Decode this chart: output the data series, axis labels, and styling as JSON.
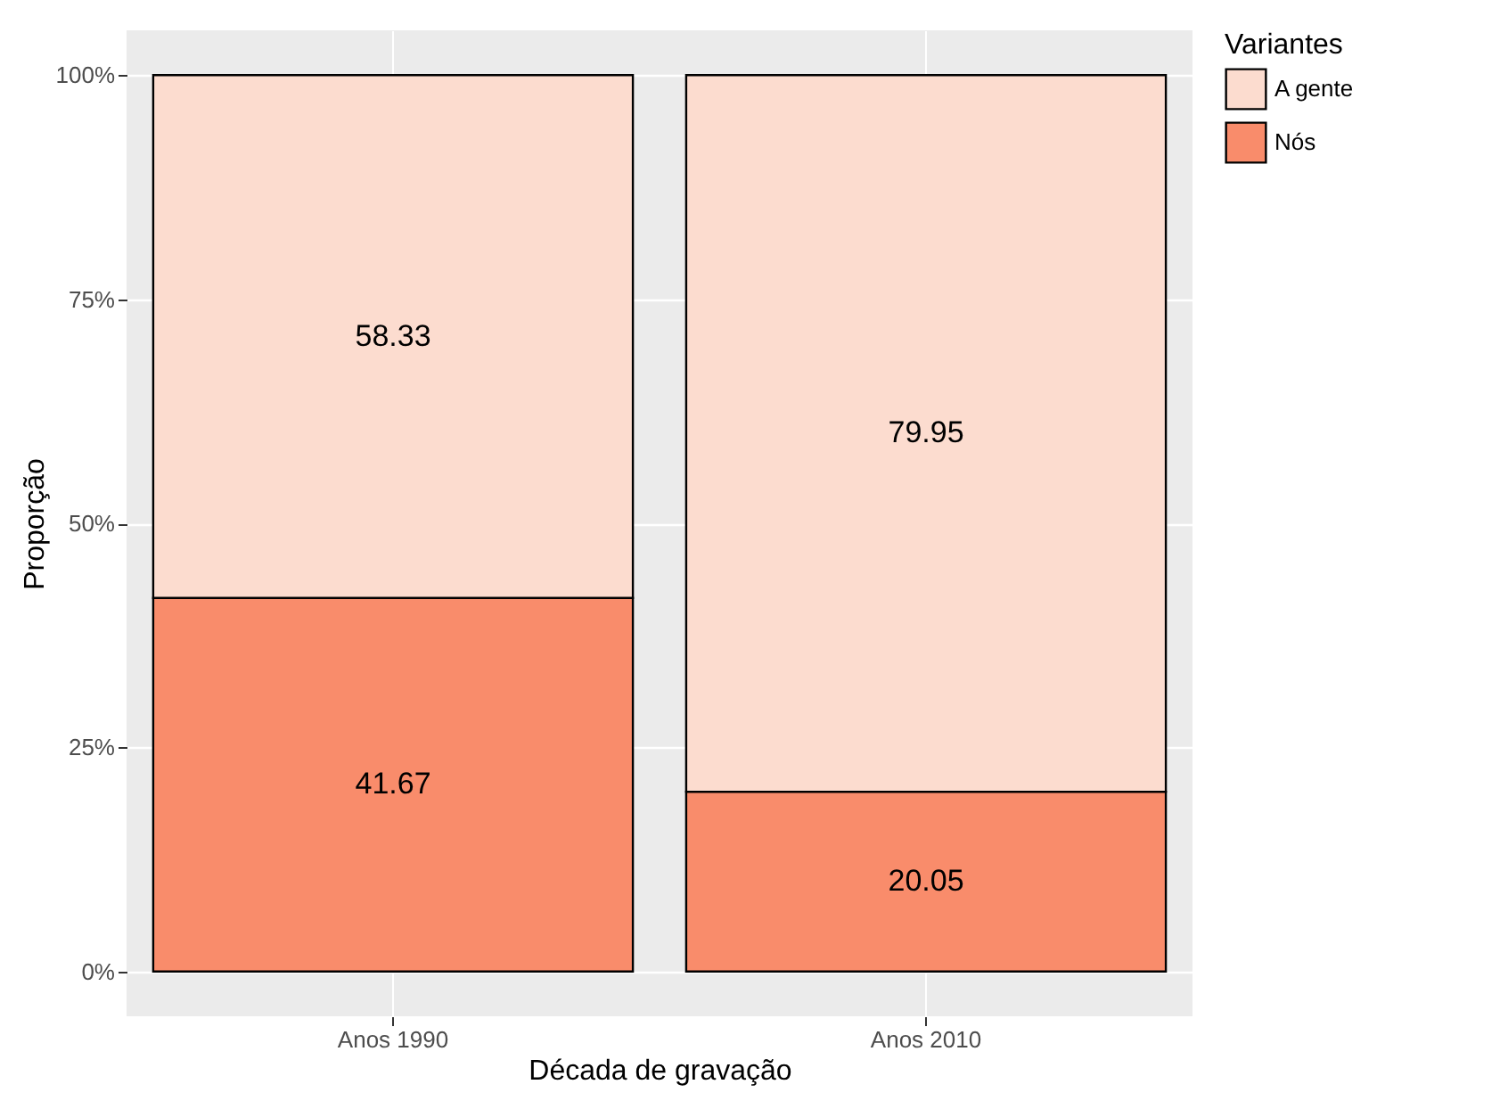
{
  "chart_data": {
    "type": "bar",
    "stacked": true,
    "xlabel": "Década de gravação",
    "ylabel": "Proporção",
    "legend_title": "Variantes",
    "categories": [
      "Anos 1990",
      "Anos 2010"
    ],
    "series": [
      {
        "name": "Nós",
        "color": "#f98c6b",
        "values": [
          41.67,
          20.05
        ]
      },
      {
        "name": "A gente",
        "color": "#fcdccf",
        "values": [
          58.33,
          79.95
        ]
      }
    ],
    "ylim": [
      -5,
      105
    ],
    "yticks": [
      {
        "value": 0,
        "label": "0%"
      },
      {
        "value": 25,
        "label": "25%"
      },
      {
        "value": 50,
        "label": "50%"
      },
      {
        "value": 75,
        "label": "75%"
      },
      {
        "value": 100,
        "label": "100%"
      }
    ],
    "grid": true,
    "legend": "right",
    "data_labels": true
  }
}
